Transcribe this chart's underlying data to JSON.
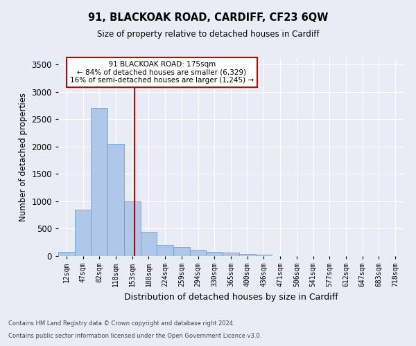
{
  "title1": "91, BLACKOAK ROAD, CARDIFF, CF23 6QW",
  "title2": "Size of property relative to detached houses in Cardiff",
  "xlabel": "Distribution of detached houses by size in Cardiff",
  "ylabel": "Number of detached properties",
  "annotation_title": "91 BLACKOAK ROAD: 175sqm",
  "annotation_line1": "← 84% of detached houses are smaller (6,329)",
  "annotation_line2": "16% of semi-detached houses are larger (1,245) →",
  "footer1": "Contains HM Land Registry data © Crown copyright and database right 2024.",
  "footer2": "Contains public sector information licensed under the Open Government Licence v3.0.",
  "bar_color": "#aec6e8",
  "bar_edge_color": "#5b9bd5",
  "vline_color": "#cc0000",
  "bar_values": [
    75,
    850,
    2700,
    2050,
    1000,
    440,
    200,
    160,
    120,
    80,
    60,
    40,
    25,
    5,
    2,
    1,
    0,
    0,
    0,
    0,
    0
  ],
  "categories": [
    "12sqm",
    "47sqm",
    "82sqm",
    "118sqm",
    "153sqm",
    "188sqm",
    "224sqm",
    "259sqm",
    "294sqm",
    "330sqm",
    "365sqm",
    "400sqm",
    "436sqm",
    "471sqm",
    "506sqm",
    "541sqm",
    "577sqm",
    "612sqm",
    "647sqm",
    "683sqm",
    "718sqm"
  ],
  "ylim": [
    0,
    3600
  ],
  "yticks": [
    0,
    500,
    1000,
    1500,
    2000,
    2500,
    3000,
    3500
  ],
  "background_color": "#e8edf5",
  "plot_background": "#e8edf5",
  "grid_color": "#ffffff"
}
